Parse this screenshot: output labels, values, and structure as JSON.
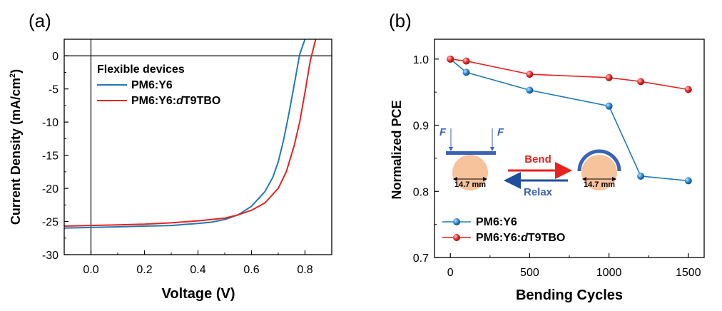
{
  "chart_data": [
    {
      "panel_label": "(a)",
      "type": "line",
      "xlabel": "Voltage (V)",
      "ylabel_main": "Current Density (mA/cm",
      "ylabel_sup": "2",
      "ylabel_close": ")",
      "xlim": [
        -0.1,
        0.9
      ],
      "ylim": [
        -30,
        2.5
      ],
      "xticks": [
        0.0,
        0.2,
        0.4,
        0.6,
        0.8
      ],
      "xtick_labels": [
        "0.0",
        "0.2",
        "0.4",
        "0.6",
        "0.8"
      ],
      "yticks": [
        0,
        -5,
        -10,
        -15,
        -20,
        -25,
        -30
      ],
      "ytick_labels": [
        "0",
        "-5",
        "-10",
        "-15",
        "-20",
        "-25",
        "-30"
      ],
      "legend_title": "Flexible devices",
      "legend_position": "top-left",
      "series": [
        {
          "name": "PM6:Y6",
          "name_parts": [
            "PM6:Y6",
            "",
            ""
          ],
          "color": "#1f7ab5",
          "x": [
            -0.1,
            0.0,
            0.1,
            0.2,
            0.3,
            0.4,
            0.45,
            0.5,
            0.55,
            0.6,
            0.65,
            0.68,
            0.7,
            0.72,
            0.74,
            0.76,
            0.78,
            0.8
          ],
          "y": [
            -26.0,
            -25.9,
            -25.8,
            -25.7,
            -25.6,
            -25.3,
            -25.1,
            -24.7,
            -24.0,
            -22.7,
            -20.5,
            -18.3,
            -16.0,
            -12.7,
            -8.7,
            -4.3,
            0.2,
            2.5
          ]
        },
        {
          "name": "PM6:Y6:dT9TBO",
          "name_parts": [
            "PM6:Y6:",
            "d",
            "T9TBO"
          ],
          "color": "#e8221f",
          "x": [
            -0.1,
            0.0,
            0.1,
            0.2,
            0.3,
            0.4,
            0.5,
            0.55,
            0.6,
            0.65,
            0.7,
            0.73,
            0.76,
            0.78,
            0.8,
            0.82,
            0.84
          ],
          "y": [
            -25.7,
            -25.6,
            -25.5,
            -25.4,
            -25.2,
            -24.9,
            -24.5,
            -24.0,
            -23.3,
            -22.2,
            -20.0,
            -17.5,
            -13.5,
            -10.0,
            -5.5,
            -0.7,
            2.5
          ]
        }
      ]
    },
    {
      "panel_label": "(b)",
      "type": "line",
      "xlabel": "Bending Cycles",
      "ylabel": "Normalized PCE",
      "xlim": [
        -100,
        1600
      ],
      "ylim": [
        0.7,
        1.03
      ],
      "xticks": [
        0,
        500,
        1000,
        1500
      ],
      "xtick_labels": [
        "0",
        "500",
        "1000",
        "1500"
      ],
      "yticks": [
        0.7,
        0.8,
        0.9,
        1.0
      ],
      "ytick_labels": [
        "0.7",
        "0.8",
        "0.9",
        "1.0"
      ],
      "legend_position": "bottom-left",
      "series": [
        {
          "name": "PM6:Y6",
          "name_parts": [
            "PM6:Y6",
            "",
            ""
          ],
          "color": "#1f7ab5",
          "x": [
            0,
            100,
            500,
            1000,
            1200,
            1500
          ],
          "y": [
            1.0,
            0.98,
            0.953,
            0.929,
            0.823,
            0.816
          ]
        },
        {
          "name": "PM6:Y6:dT9TBO",
          "name_parts": [
            "PM6:Y6:",
            "d",
            "T9TBO"
          ],
          "color": "#e8221f",
          "x": [
            0,
            100,
            500,
            1000,
            1200,
            1500
          ],
          "y": [
            1.0,
            0.997,
            0.977,
            0.972,
            0.966,
            0.954
          ]
        }
      ],
      "inset": {
        "force_label": "F",
        "bend_label": "Bend",
        "relax_label": "Relax",
        "diameter_label": "14.7 mm",
        "bar_color": "#3b63b5",
        "circle_color": "#f6c39c",
        "bend_arrow_color": "#e8221f",
        "relax_arrow_color": "#1f4e9c"
      }
    }
  ]
}
